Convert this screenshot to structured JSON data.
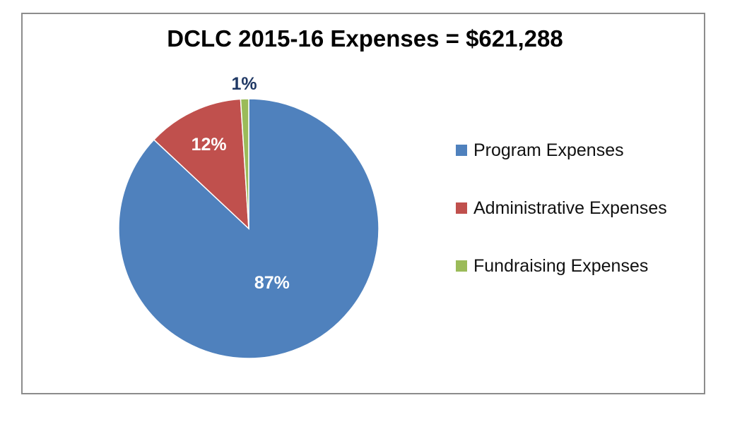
{
  "chart_data": {
    "type": "pie",
    "title": "DCLC 2015-16 Expenses = $621,288",
    "legend_position": "right",
    "slices": [
      {
        "label": "Program Expenses",
        "value": 87,
        "display": "87%",
        "color": "#4f81bd",
        "label_color": "#ffffff"
      },
      {
        "label": "Administrative Expenses",
        "value": 12,
        "display": "12%",
        "color": "#c0504d",
        "label_color": "#ffffff"
      },
      {
        "label": "Fundraising Expenses",
        "value": 1,
        "display": "1%",
        "color": "#9bbb59",
        "label_color": "#1f3864"
      }
    ]
  }
}
